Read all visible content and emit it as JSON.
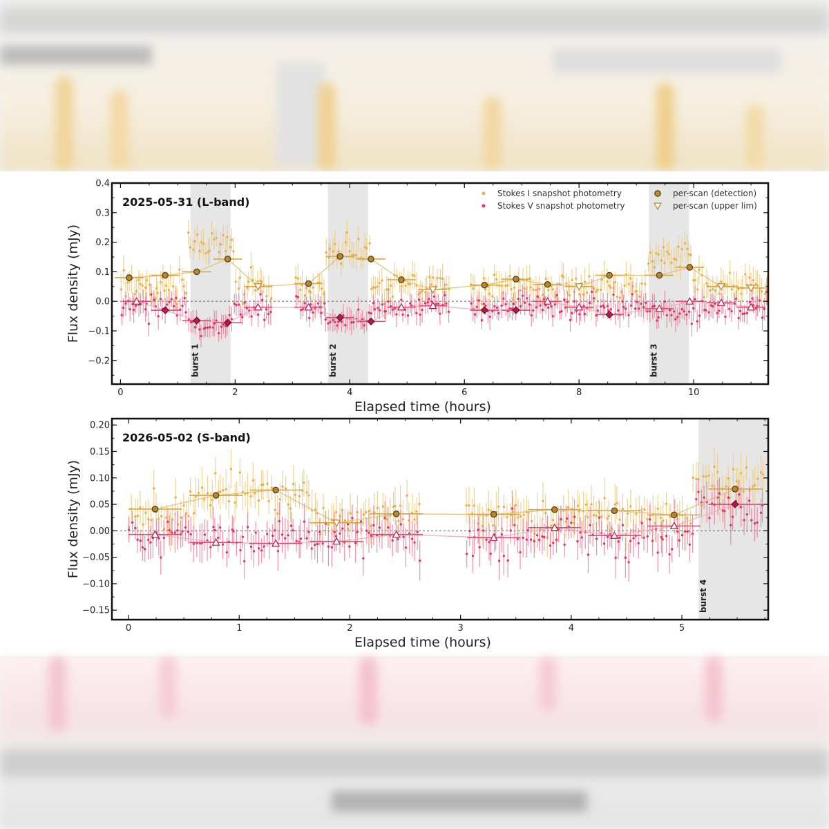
{
  "chart_data": [
    {
      "type": "scatter",
      "title": "2025-05-31 (L-band)",
      "xlabel": "Elapsed time (hours)",
      "ylabel": "Flux density (mJy)",
      "xlim": [
        -0.15,
        11.3
      ],
      "ylim": [
        -0.28,
        0.4
      ],
      "xticks": [
        0,
        2,
        4,
        6,
        8,
        10
      ],
      "xtick_labels": [
        "0",
        "2",
        "4",
        "6",
        "8",
        "10"
      ],
      "yticks": [
        -0.2,
        -0.1,
        0.0,
        0.1,
        0.2,
        0.3,
        0.4
      ],
      "ytick_labels": [
        "−0.2",
        "−0.1",
        "0.0",
        "0.1",
        "0.2",
        "0.3",
        "0.4"
      ],
      "zero_line": true,
      "grid": false,
      "legend_position": "top-right",
      "legend": {
        "stokes_i": "Stokes I  snapshot photometry",
        "stokes_v": "Stokes V  snapshot photometry",
        "detection": "per-scan (detection)",
        "upper_limit": "per-scan (upper lim)"
      },
      "bursts": [
        {
          "label": "burst 1",
          "x0": 1.22,
          "x1": 1.92
        },
        {
          "label": "burst 2",
          "x0": 3.62,
          "x1": 4.32
        },
        {
          "label": "burst 3",
          "x0": 9.22,
          "x1": 9.92
        }
      ],
      "snapshot_segments": [
        [
          0.0,
          2.65
        ],
        [
          3.05,
          5.75
        ],
        [
          6.1,
          11.3
        ]
      ],
      "stokes_i_snapshot": {
        "points": 280,
        "baseline_mJy": 0.05,
        "burst_levels_mJy": [
          0.2,
          0.18,
          0.15
        ],
        "typical_error_mJy": 0.04
      },
      "stokes_v_snapshot": {
        "points": 280,
        "baseline_mJy": -0.02,
        "burst_levels_mJy": [
          -0.08,
          -0.07,
          -0.04
        ],
        "typical_error_mJy": 0.035
      },
      "stokes_i_scans": [
        {
          "x": 0.15,
          "y": 0.08,
          "xerr": 0.25,
          "det": true
        },
        {
          "x": 0.78,
          "y": 0.088,
          "xerr": 0.25,
          "det": true
        },
        {
          "x": 1.33,
          "y": 0.1,
          "xerr": 0.25,
          "det": true
        },
        {
          "x": 1.87,
          "y": 0.143,
          "xerr": 0.25,
          "det": true
        },
        {
          "x": 2.4,
          "y": 0.05,
          "xerr": 0.25,
          "det": false
        },
        {
          "x": 3.28,
          "y": 0.06,
          "xerr": 0.25,
          "det": true
        },
        {
          "x": 3.83,
          "y": 0.152,
          "xerr": 0.25,
          "det": true
        },
        {
          "x": 4.37,
          "y": 0.143,
          "xerr": 0.25,
          "det": true
        },
        {
          "x": 4.9,
          "y": 0.073,
          "xerr": 0.25,
          "det": true
        },
        {
          "x": 5.45,
          "y": 0.04,
          "xerr": 0.25,
          "det": false
        },
        {
          "x": 6.35,
          "y": 0.055,
          "xerr": 0.25,
          "det": true
        },
        {
          "x": 6.9,
          "y": 0.075,
          "xerr": 0.25,
          "det": true
        },
        {
          "x": 7.45,
          "y": 0.057,
          "xerr": 0.25,
          "det": true
        },
        {
          "x": 8.0,
          "y": 0.05,
          "xerr": 0.25,
          "det": false
        },
        {
          "x": 8.53,
          "y": 0.088,
          "xerr": 0.25,
          "det": true
        },
        {
          "x": 9.4,
          "y": 0.088,
          "xerr": 0.25,
          "det": true
        },
        {
          "x": 9.93,
          "y": 0.115,
          "xerr": 0.25,
          "det": true
        },
        {
          "x": 10.48,
          "y": 0.05,
          "xerr": 0.25,
          "det": false
        },
        {
          "x": 11.0,
          "y": 0.045,
          "xerr": 0.25,
          "det": false
        }
      ],
      "stokes_v_scans": [
        {
          "x": 0.28,
          "y": 0.0,
          "xerr": 0.25,
          "det": false
        },
        {
          "x": 0.78,
          "y": -0.03,
          "xerr": 0.25,
          "det": true
        },
        {
          "x": 1.33,
          "y": -0.065,
          "xerr": 0.25,
          "det": true
        },
        {
          "x": 1.87,
          "y": -0.072,
          "xerr": 0.25,
          "det": true
        },
        {
          "x": 2.4,
          "y": -0.02,
          "xerr": 0.25,
          "det": false
        },
        {
          "x": 3.28,
          "y": -0.02,
          "xerr": 0.25,
          "det": false
        },
        {
          "x": 3.83,
          "y": -0.055,
          "xerr": 0.25,
          "det": true
        },
        {
          "x": 4.37,
          "y": -0.068,
          "xerr": 0.25,
          "det": true
        },
        {
          "x": 4.9,
          "y": -0.02,
          "xerr": 0.25,
          "det": false
        },
        {
          "x": 5.45,
          "y": -0.015,
          "xerr": 0.25,
          "det": false
        },
        {
          "x": 6.35,
          "y": -0.03,
          "xerr": 0.25,
          "det": true
        },
        {
          "x": 6.9,
          "y": -0.03,
          "xerr": 0.25,
          "det": true
        },
        {
          "x": 7.45,
          "y": 0.0,
          "xerr": 0.25,
          "det": false
        },
        {
          "x": 8.0,
          "y": -0.02,
          "xerr": 0.25,
          "det": false
        },
        {
          "x": 8.53,
          "y": -0.045,
          "xerr": 0.25,
          "det": true
        },
        {
          "x": 9.4,
          "y": -0.025,
          "xerr": 0.25,
          "det": false
        },
        {
          "x": 9.93,
          "y": 0.0,
          "xerr": 0.25,
          "det": false
        },
        {
          "x": 10.48,
          "y": -0.005,
          "xerr": 0.25,
          "det": false
        },
        {
          "x": 11.0,
          "y": -0.02,
          "xerr": 0.25,
          "det": false
        }
      ]
    },
    {
      "type": "scatter",
      "title": "2026-05-02 (S-band)",
      "xlabel": "Elapsed time (hours)",
      "ylabel": "Flux density (mJy)",
      "xlim": [
        -0.15,
        5.78
      ],
      "ylim": [
        -0.168,
        0.212
      ],
      "xticks": [
        0,
        1,
        2,
        3,
        4,
        5
      ],
      "xtick_labels": [
        "0",
        "1",
        "2",
        "3",
        "4",
        "5"
      ],
      "yticks": [
        -0.15,
        -0.1,
        -0.05,
        0.0,
        0.05,
        0.1,
        0.15,
        0.2
      ],
      "ytick_labels": [
        "−0.15",
        "−0.10",
        "−0.05",
        "0.00",
        "0.05",
        "0.10",
        "0.15",
        "0.20"
      ],
      "zero_line": true,
      "grid": false,
      "bursts": [
        {
          "label": "burst 4",
          "x0": 5.15,
          "x1": 5.78
        }
      ],
      "snapshot_segments": [
        [
          0.0,
          2.65
        ],
        [
          3.05,
          5.75
        ]
      ],
      "stokes_i_snapshot": {
        "points": 220,
        "baseline_mJy": 0.03,
        "early_level_mJy": 0.075,
        "burst_levels_mJy": [
          0.09
        ],
        "typical_error_mJy": 0.03
      },
      "stokes_v_snapshot": {
        "points": 220,
        "baseline_mJy": -0.012,
        "burst_levels_mJy": [
          0.05
        ],
        "typical_error_mJy": 0.03
      },
      "stokes_i_scans": [
        {
          "x": 0.24,
          "y": 0.041,
          "xerr": 0.24,
          "det": true
        },
        {
          "x": 0.79,
          "y": 0.067,
          "xerr": 0.24,
          "det": true
        },
        {
          "x": 1.33,
          "y": 0.077,
          "xerr": 0.24,
          "det": true
        },
        {
          "x": 1.88,
          "y": 0.015,
          "xerr": 0.24,
          "det": false
        },
        {
          "x": 2.42,
          "y": 0.032,
          "xerr": 0.24,
          "det": true
        },
        {
          "x": 3.3,
          "y": 0.031,
          "xerr": 0.24,
          "det": true
        },
        {
          "x": 3.85,
          "y": 0.04,
          "xerr": 0.24,
          "det": true
        },
        {
          "x": 4.39,
          "y": 0.038,
          "xerr": 0.24,
          "det": true
        },
        {
          "x": 4.93,
          "y": 0.03,
          "xerr": 0.24,
          "det": true
        },
        {
          "x": 5.48,
          "y": 0.079,
          "xerr": 0.24,
          "det": true
        }
      ],
      "stokes_v_scans": [
        {
          "x": 0.24,
          "y": -0.007,
          "xerr": 0.24,
          "det": false
        },
        {
          "x": 0.79,
          "y": -0.022,
          "xerr": 0.24,
          "det": false
        },
        {
          "x": 1.33,
          "y": -0.024,
          "xerr": 0.24,
          "det": false
        },
        {
          "x": 1.88,
          "y": -0.02,
          "xerr": 0.24,
          "det": false
        },
        {
          "x": 2.42,
          "y": -0.007,
          "xerr": 0.24,
          "det": false
        },
        {
          "x": 3.3,
          "y": -0.013,
          "xerr": 0.24,
          "det": false
        },
        {
          "x": 3.85,
          "y": 0.006,
          "xerr": 0.24,
          "det": false
        },
        {
          "x": 4.39,
          "y": -0.009,
          "xerr": 0.24,
          "det": false
        },
        {
          "x": 4.93,
          "y": 0.009,
          "xerr": 0.24,
          "det": false
        },
        {
          "x": 5.48,
          "y": 0.05,
          "xerr": 0.24,
          "det": true
        }
      ]
    }
  ],
  "colors": {
    "stokes_i": "#e5b24c",
    "stokes_i_err": "#efca7e",
    "stokes_i_line": "#dcc06f",
    "stokes_v": "#e23564",
    "stokes_v_err": "#ee7c98",
    "stokes_v_line": "#f2a7bb",
    "scan_i_fill": "#b8862b",
    "scan_i_edge": "#4d3a12",
    "scan_v_fill": "#b51a4b",
    "scan_v_edge": "#5a0c24",
    "burst_shade": "#e6e6e6",
    "axes": "#111111"
  }
}
